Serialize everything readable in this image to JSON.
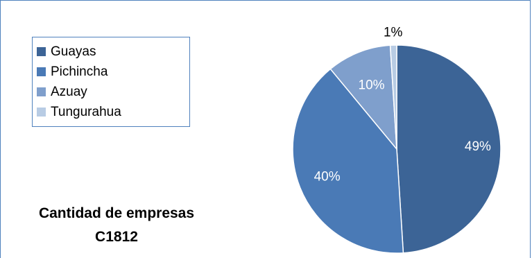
{
  "chart_data": {
    "type": "pie",
    "title_lines": [
      "Cantidad de empresas",
      "C1812"
    ],
    "legend_position": "top-left",
    "categories": [
      "Guayas",
      "Pichincha",
      "Azuay",
      "Tungurahua"
    ],
    "values": [
      49,
      40,
      10,
      1
    ],
    "labels": [
      "49%",
      "40%",
      "10%",
      "1%"
    ],
    "colors": [
      "#3c6496",
      "#4a7ab6",
      "#7f9fcc",
      "#b8cce4"
    ],
    "label_colors": [
      "#ffffff",
      "#ffffff",
      "#ffffff",
      "#000000"
    ]
  }
}
